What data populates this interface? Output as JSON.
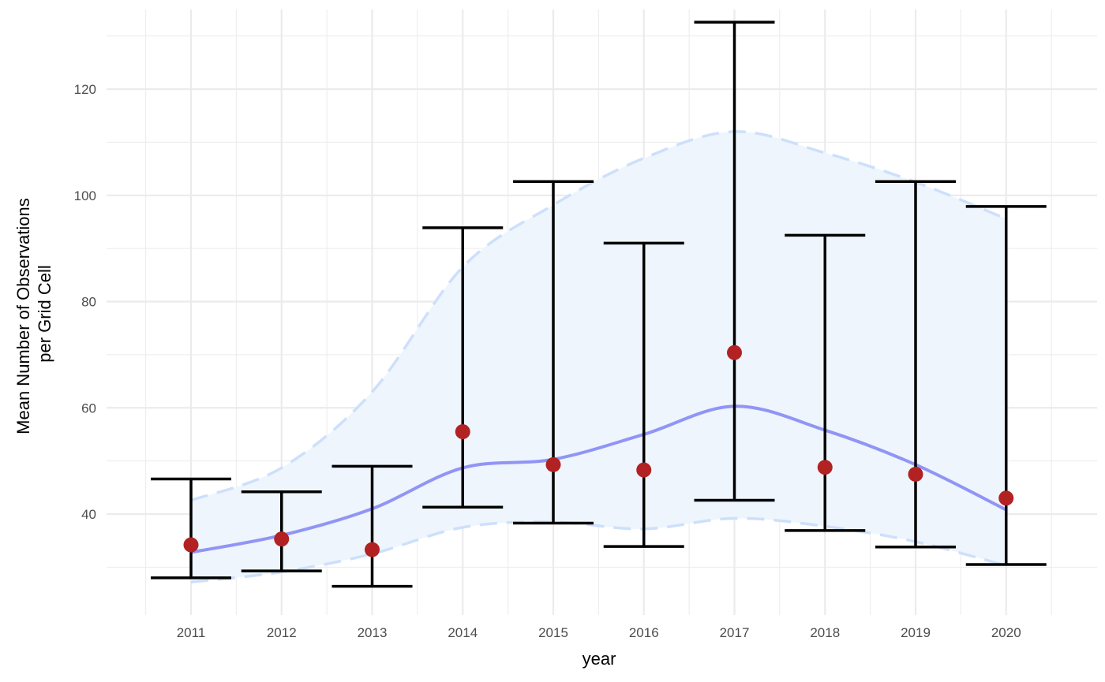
{
  "chart_data": {
    "type": "line",
    "title": "",
    "xlabel": "year",
    "ylabel_lines": [
      "Mean Number of Observations",
      "per Grid Cell"
    ],
    "categories": [
      "2011",
      "2012",
      "2013",
      "2014",
      "2015",
      "2016",
      "2017",
      "2018",
      "2019",
      "2020"
    ],
    "ylim": [
      21,
      135
    ],
    "yticks": [
      40,
      60,
      80,
      100,
      120
    ],
    "grid": true,
    "legend": "none",
    "points": [
      34.2,
      35.3,
      33.3,
      55.5,
      49.3,
      48.3,
      70.4,
      48.8,
      47.5,
      43.0
    ],
    "error_bars": {
      "lower": [
        28.0,
        29.3,
        26.4,
        41.3,
        38.3,
        33.9,
        42.6,
        36.9,
        33.8,
        30.5
      ],
      "upper": [
        46.6,
        44.2,
        49.0,
        93.9,
        102.6,
        91.0,
        132.6,
        92.5,
        102.6,
        97.9
      ]
    },
    "smooth_line": [
      32.8,
      36.0,
      41.0,
      48.7,
      50.3,
      55.0,
      60.3,
      55.8,
      49.3,
      40.8
    ],
    "band": {
      "lower": [
        27.2,
        29.1,
        32.5,
        37.5,
        38.5,
        37.2,
        39.2,
        37.7,
        34.8,
        30.3
      ],
      "upper": [
        42.6,
        48.7,
        63.0,
        86.5,
        98.2,
        107.0,
        112.0,
        108.0,
        102.5,
        95.6
      ]
    },
    "colors": {
      "points": "#b22222",
      "error_bars": "#000000",
      "smooth_line": "#9095f5",
      "band_fill": "#eef5fd",
      "band_edges": "#cde0fb",
      "grid": "#ebebeb"
    }
  }
}
